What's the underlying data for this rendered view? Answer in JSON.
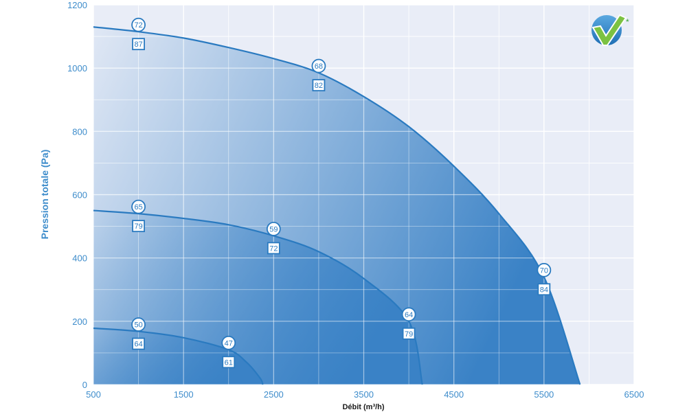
{
  "chart_data": {
    "type": "area",
    "xlabel": "Débit (m³/h)",
    "ylabel": "Pression totale (Pa)",
    "xlim": [
      500,
      6500
    ],
    "ylim": [
      0,
      1200
    ],
    "x_ticks": [
      "500",
      "1500",
      "2500",
      "3500",
      "4500",
      "5500",
      "6500"
    ],
    "y_ticks": [
      "0",
      "200",
      "400",
      "600",
      "800",
      "1000",
      "1200"
    ],
    "grid": true,
    "series": [
      {
        "points": [
          [
            500,
            1130
          ],
          [
            1000,
            1115
          ],
          [
            1500,
            1095
          ],
          [
            2000,
            1065
          ],
          [
            2500,
            1030
          ],
          [
            3000,
            985
          ],
          [
            3500,
            910
          ],
          [
            4000,
            815
          ],
          [
            4500,
            690
          ],
          [
            5000,
            540
          ],
          [
            5500,
            340
          ],
          [
            5900,
            0
          ]
        ],
        "markers": [
          {
            "x": 1000,
            "y": 1115,
            "circle": "72",
            "square": "87"
          },
          {
            "x": 3000,
            "y": 985,
            "circle": "68",
            "square": "82"
          },
          {
            "x": 5500,
            "y": 340,
            "circle": "70",
            "square": "84"
          }
        ]
      },
      {
        "points": [
          [
            500,
            550
          ],
          [
            1000,
            540
          ],
          [
            1500,
            525
          ],
          [
            2000,
            505
          ],
          [
            2500,
            470
          ],
          [
            3000,
            420
          ],
          [
            3500,
            335
          ],
          [
            4000,
            200
          ],
          [
            4150,
            0
          ]
        ],
        "markers": [
          {
            "x": 1000,
            "y": 540,
            "circle": "65",
            "square": "79"
          },
          {
            "x": 2500,
            "y": 470,
            "circle": "59",
            "square": "72"
          },
          {
            "x": 4000,
            "y": 200,
            "circle": "64",
            "square": "79"
          }
        ]
      },
      {
        "points": [
          [
            500,
            178
          ],
          [
            1000,
            168
          ],
          [
            1500,
            148
          ],
          [
            2000,
            110
          ],
          [
            2200,
            70
          ],
          [
            2350,
            20
          ],
          [
            2380,
            0
          ]
        ],
        "markers": [
          {
            "x": 1000,
            "y": 168,
            "circle": "50",
            "square": "64"
          },
          {
            "x": 2000,
            "y": 110,
            "circle": "47",
            "square": "61"
          }
        ]
      }
    ]
  },
  "logo": {
    "icon": "check-badge-icon",
    "mark": "*"
  },
  "colors": {
    "axis_text": "#3d8ccb",
    "plot_bg": "#e9edf7",
    "curve": "#2a7ac0",
    "fill_dark": "#3a82c6"
  }
}
